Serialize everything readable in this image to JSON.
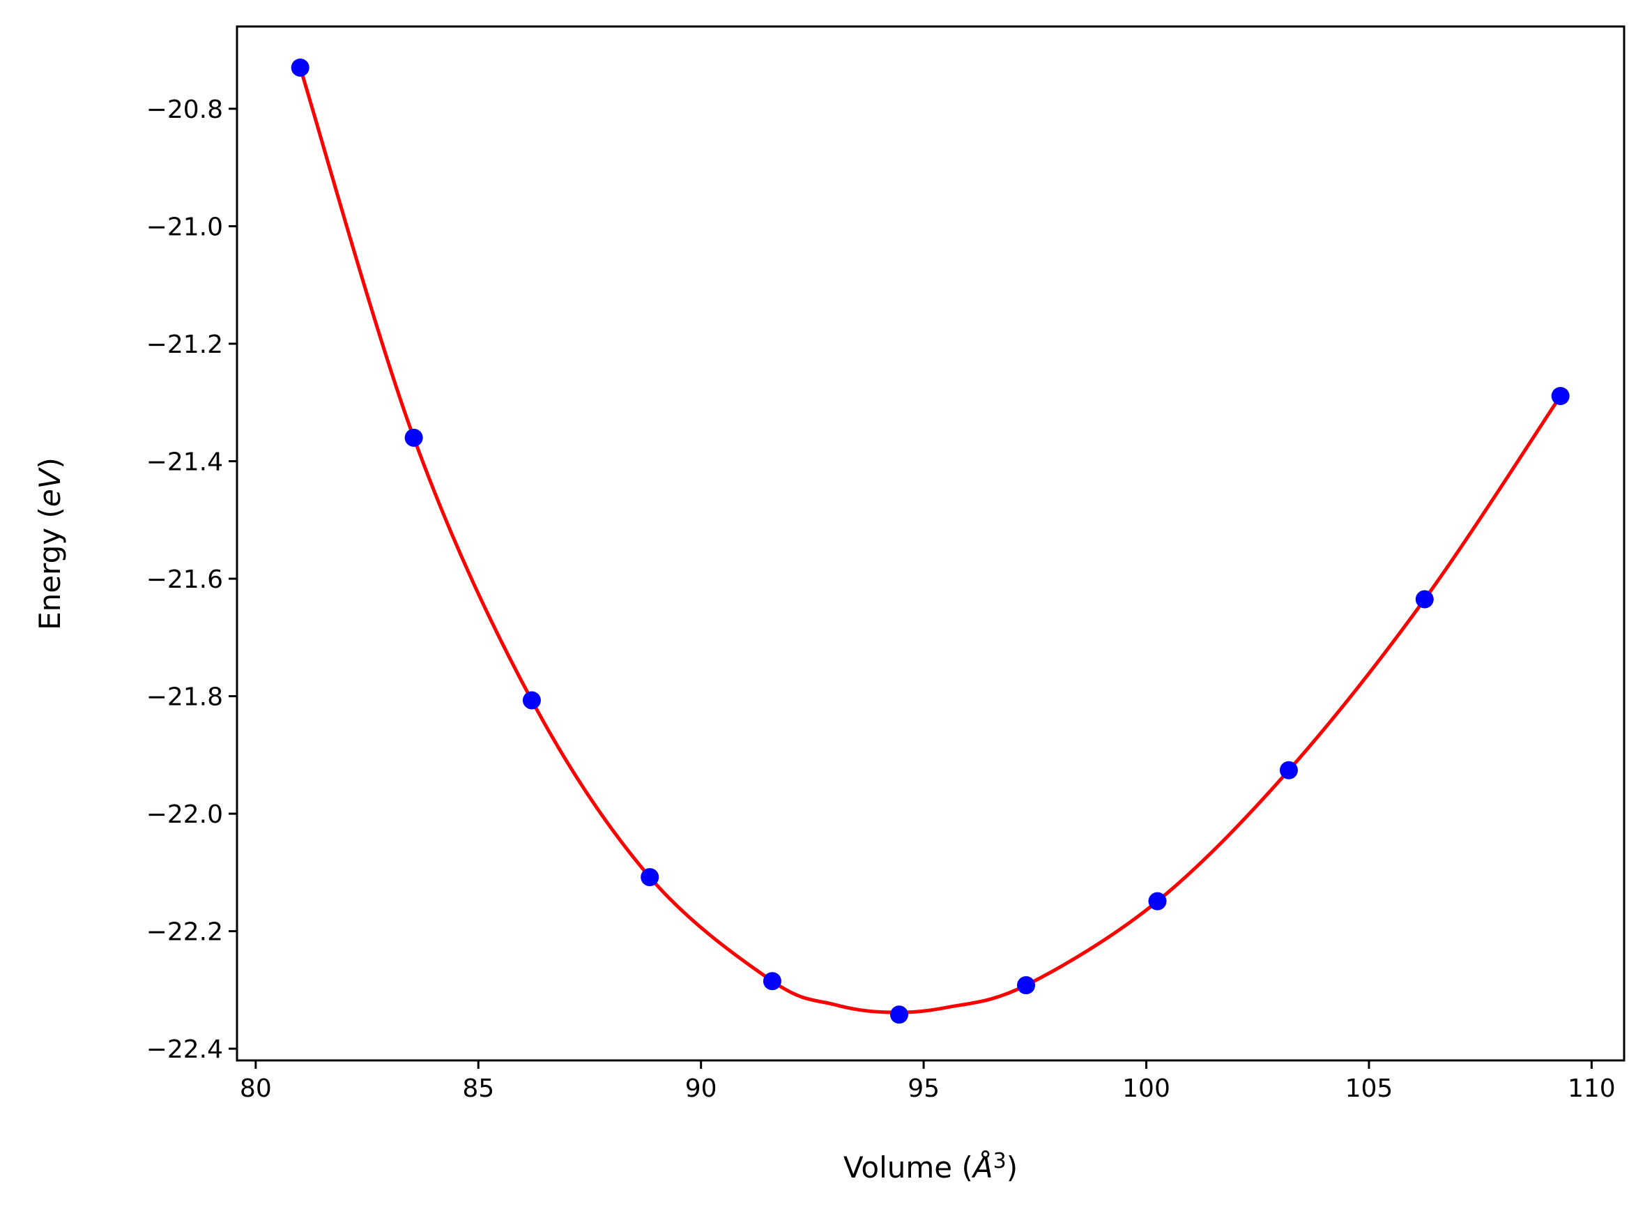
{
  "chart_data": {
    "type": "scatter",
    "title": "",
    "xlabel": "Volume",
    "xlabel_unit_symbol": "Å",
    "xlabel_unit_power": "3",
    "ylabel": "Energy",
    "ylabel_unit": "eV",
    "xlim": [
      79.58,
      110.73
    ],
    "ylim": [
      -22.42,
      -20.66
    ],
    "xticks": [
      80,
      85,
      90,
      95,
      100,
      105,
      110
    ],
    "yticks": [
      -20.8,
      -21.0,
      -21.2,
      -21.4,
      -21.6,
      -21.8,
      -22.0,
      -22.2,
      -22.4
    ],
    "xtick_labels": [
      "80",
      "85",
      "90",
      "95",
      "100",
      "105",
      "110"
    ],
    "ytick_labels": [
      "−20.8",
      "−21.0",
      "−21.2",
      "−21.4",
      "−21.6",
      "−21.8",
      "−22.0",
      "−22.2",
      "−22.4"
    ],
    "grid": false,
    "series": [
      {
        "kind": "points",
        "color": "#0000ff",
        "x": [
          81.0,
          83.55,
          86.2,
          88.85,
          91.6,
          94.45,
          97.3,
          100.25,
          103.2,
          106.25,
          109.3
        ],
        "y": [
          -20.73,
          -21.36,
          -21.807,
          -22.108,
          -22.285,
          -22.342,
          -22.292,
          -22.149,
          -21.926,
          -21.635,
          -21.289
        ]
      },
      {
        "kind": "fit-curve",
        "color": "#ff0000",
        "x": [
          81.0,
          83.55,
          86.2,
          88.85,
          91.6,
          93.0,
          94.2,
          95.5,
          97.3,
          100.25,
          103.2,
          106.25,
          109.3
        ],
        "y": [
          -20.73,
          -21.36,
          -21.807,
          -22.108,
          -22.285,
          -22.325,
          -22.338,
          -22.33,
          -22.292,
          -22.149,
          -21.926,
          -21.635,
          -21.289
        ]
      }
    ]
  }
}
